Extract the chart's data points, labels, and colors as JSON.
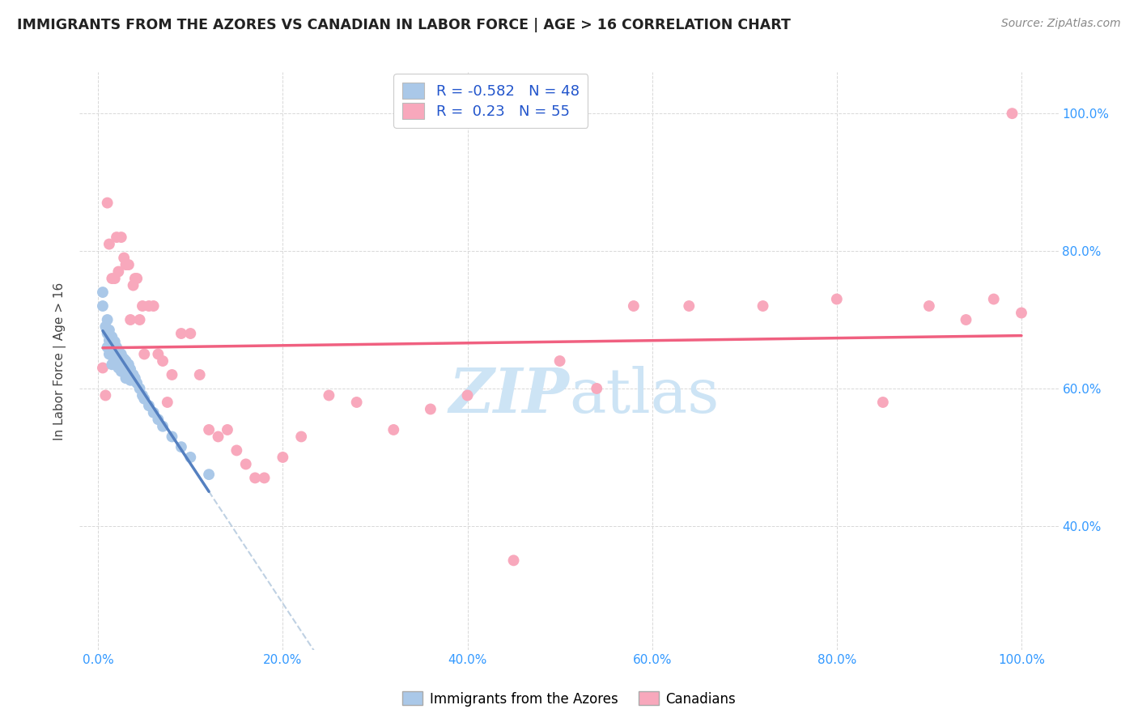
{
  "title": "IMMIGRANTS FROM THE AZORES VS CANADIAN IN LABOR FORCE | AGE > 16 CORRELATION CHART",
  "source": "Source: ZipAtlas.com",
  "ylabel": "In Labor Force | Age > 16",
  "x_tick_values": [
    0.0,
    0.2,
    0.4,
    0.6,
    0.8,
    1.0
  ],
  "y_tick_values_right": [
    0.4,
    0.6,
    0.8,
    1.0
  ],
  "xlim": [
    -0.02,
    1.04
  ],
  "ylim": [
    0.22,
    1.06
  ],
  "legend_label1": "Immigrants from the Azores",
  "legend_label2": "Canadians",
  "color_azores": "#aac8e8",
  "color_canadians": "#f8a8bc",
  "color_azores_line": "#5580c0",
  "color_canadians_line": "#f06080",
  "color_dashed": "#b8cce0",
  "azores_R": -0.582,
  "azores_N": 48,
  "canadians_R": 0.23,
  "canadians_N": 55,
  "azores_x": [
    0.005,
    0.005,
    0.008,
    0.01,
    0.01,
    0.01,
    0.012,
    0.012,
    0.012,
    0.015,
    0.015,
    0.015,
    0.015,
    0.018,
    0.018,
    0.018,
    0.02,
    0.02,
    0.02,
    0.022,
    0.022,
    0.022,
    0.025,
    0.025,
    0.025,
    0.028,
    0.028,
    0.03,
    0.03,
    0.03,
    0.033,
    0.033,
    0.035,
    0.035,
    0.038,
    0.04,
    0.042,
    0.045,
    0.048,
    0.05,
    0.055,
    0.06,
    0.065,
    0.07,
    0.08,
    0.09,
    0.1,
    0.12
  ],
  "azores_y": [
    0.74,
    0.72,
    0.69,
    0.7,
    0.68,
    0.66,
    0.685,
    0.67,
    0.65,
    0.675,
    0.66,
    0.648,
    0.635,
    0.668,
    0.655,
    0.64,
    0.66,
    0.65,
    0.638,
    0.655,
    0.643,
    0.63,
    0.65,
    0.638,
    0.625,
    0.643,
    0.63,
    0.64,
    0.628,
    0.615,
    0.635,
    0.62,
    0.628,
    0.612,
    0.62,
    0.615,
    0.608,
    0.6,
    0.59,
    0.585,
    0.575,
    0.565,
    0.555,
    0.545,
    0.53,
    0.515,
    0.5,
    0.475
  ],
  "canadians_x": [
    0.005,
    0.008,
    0.01,
    0.012,
    0.015,
    0.018,
    0.02,
    0.022,
    0.025,
    0.028,
    0.03,
    0.033,
    0.035,
    0.038,
    0.04,
    0.042,
    0.045,
    0.048,
    0.05,
    0.055,
    0.06,
    0.065,
    0.07,
    0.075,
    0.08,
    0.09,
    0.1,
    0.11,
    0.12,
    0.13,
    0.14,
    0.15,
    0.16,
    0.17,
    0.18,
    0.2,
    0.22,
    0.25,
    0.28,
    0.32,
    0.36,
    0.4,
    0.45,
    0.5,
    0.54,
    0.58,
    0.64,
    0.72,
    0.8,
    0.85,
    0.9,
    0.94,
    0.97,
    0.99,
    1.0
  ],
  "canadians_y": [
    0.63,
    0.59,
    0.87,
    0.81,
    0.76,
    0.76,
    0.82,
    0.77,
    0.82,
    0.79,
    0.78,
    0.78,
    0.7,
    0.75,
    0.76,
    0.76,
    0.7,
    0.72,
    0.65,
    0.72,
    0.72,
    0.65,
    0.64,
    0.58,
    0.62,
    0.68,
    0.68,
    0.62,
    0.54,
    0.53,
    0.54,
    0.51,
    0.49,
    0.47,
    0.47,
    0.5,
    0.53,
    0.59,
    0.58,
    0.54,
    0.57,
    0.59,
    0.35,
    0.64,
    0.6,
    0.72,
    0.72,
    0.72,
    0.73,
    0.58,
    0.72,
    0.7,
    0.73,
    1.0,
    0.71
  ],
  "watermark_text": "ZIPatlas",
  "watermark_color": "#cde4f5",
  "grid_color": "#d8d8d8",
  "title_color": "#222222",
  "source_color": "#888888",
  "tick_color": "#3399ff"
}
